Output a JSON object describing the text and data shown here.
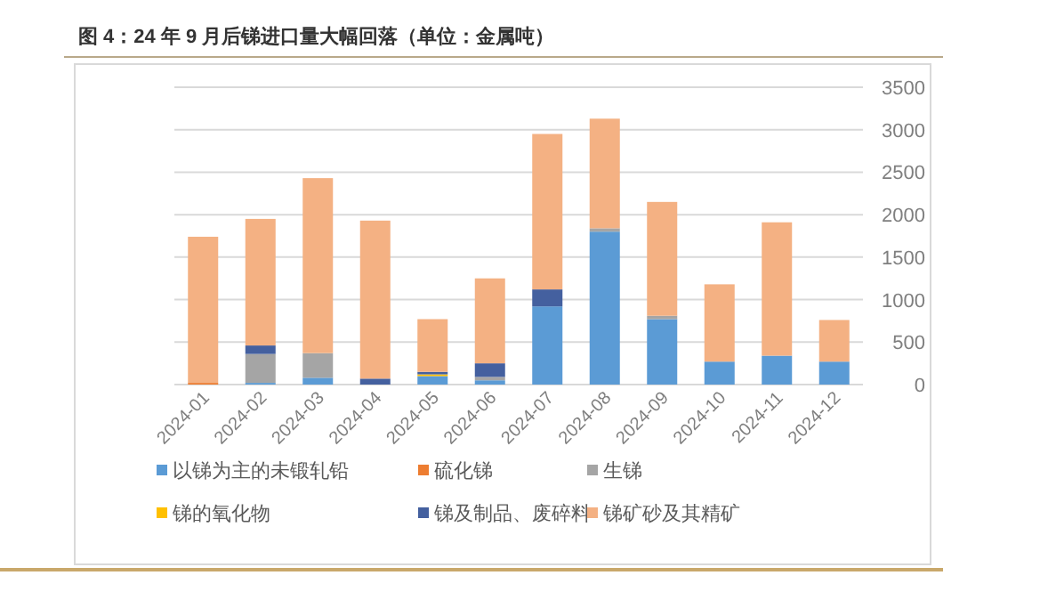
{
  "chart_data": {
    "type": "bar",
    "stacked": true,
    "title": "图 4：24 年 9 月后锑进口量大幅回落（单位：金属吨）",
    "categories": [
      "2024-01",
      "2024-02",
      "2024-03",
      "2024-04",
      "2024-05",
      "2024-06",
      "2024-07",
      "2024-08",
      "2024-09",
      "2024-10",
      "2024-11",
      "2024-12"
    ],
    "series": [
      {
        "name": "以锑为主的未锻轧铅",
        "color": "#5b9bd5",
        "values": [
          0,
          20,
          80,
          0,
          100,
          50,
          920,
          1800,
          770,
          270,
          340,
          270
        ]
      },
      {
        "name": "硫化锑",
        "color": "#ed7d31",
        "values": [
          20,
          0,
          0,
          0,
          0,
          0,
          0,
          0,
          0,
          0,
          0,
          0
        ]
      },
      {
        "name": "生锑",
        "color": "#a5a5a5",
        "values": [
          null,
          340,
          290,
          0,
          null,
          40,
          null,
          40,
          40,
          0,
          0,
          0
        ]
      },
      {
        "name": "锑的氧化物",
        "color": "#ffc000",
        "values": [
          0,
          0,
          0,
          0,
          20,
          0,
          0,
          0,
          0,
          0,
          0,
          0
        ]
      },
      {
        "name": "锑及制品、废碎料",
        "color": "#44609f",
        "values": [
          0,
          100,
          0,
          70,
          30,
          160,
          200,
          0,
          0,
          0,
          0,
          0
        ]
      },
      {
        "name": "锑矿砂及其精矿",
        "color": "#f4b183",
        "values": [
          1720,
          1490,
          2060,
          1860,
          620,
          1000,
          1830,
          1290,
          1340,
          910,
          1570,
          490
        ]
      }
    ],
    "ylim": [
      0,
      3500
    ],
    "yticks": [
      0,
      500,
      1000,
      1500,
      2000,
      2500,
      3000,
      3500
    ],
    "grid": "y",
    "legend": "bottom"
  }
}
